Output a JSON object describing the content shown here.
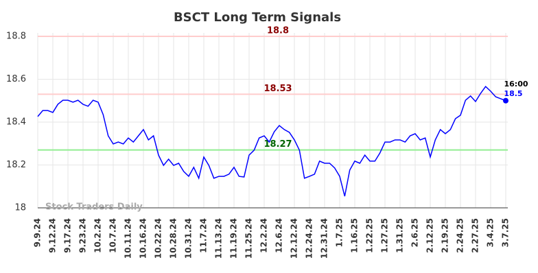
{
  "chart_data": {
    "type": "line",
    "title": "BSCT Long Term Signals",
    "categories": [
      "9.9.24",
      null,
      null,
      "9.12.24",
      null,
      null,
      "9.17.24",
      null,
      null,
      "9.23.24",
      null,
      null,
      "10.2.24",
      null,
      null,
      "10.7.24",
      null,
      null,
      "10.11.24",
      null,
      null,
      "10.16.24",
      null,
      null,
      "10.22.24",
      null,
      null,
      "10.28.24",
      null,
      null,
      "10.31.24",
      null,
      null,
      "11.7.24",
      null,
      null,
      "11.13.24",
      null,
      null,
      "11.19.24",
      null,
      null,
      "11.25.24",
      null,
      null,
      "12.2.24",
      null,
      null,
      "12.6.24",
      null,
      null,
      "12.12.24",
      null,
      null,
      "12.24.24",
      null,
      null,
      "12.31.24",
      null,
      null,
      "1.7.25",
      null,
      null,
      "1.16.25",
      null,
      null,
      "1.22.25",
      null,
      null,
      "1.27.25",
      null,
      null,
      "1.31.25",
      null,
      null,
      "2.6.25",
      null,
      null,
      "2.12.25",
      null,
      null,
      "2.19.25",
      null,
      null,
      "2.24.25",
      null,
      null,
      "2.27.25",
      null,
      null,
      "3.4.25",
      null,
      null,
      "3.7.25"
    ],
    "values": [
      18.426,
      18.454,
      18.454,
      18.445,
      18.483,
      18.502,
      18.502,
      18.493,
      18.502,
      18.483,
      18.474,
      18.502,
      18.493,
      18.435,
      18.336,
      18.298,
      18.307,
      18.298,
      18.326,
      18.307,
      18.336,
      18.365,
      18.317,
      18.336,
      18.246,
      18.198,
      18.227,
      18.198,
      18.208,
      18.17,
      18.147,
      18.189,
      18.138,
      18.237,
      18.198,
      18.138,
      18.147,
      18.147,
      18.157,
      18.189,
      18.147,
      18.144,
      18.246,
      18.269,
      18.326,
      18.336,
      18.307,
      18.355,
      18.384,
      18.365,
      18.352,
      18.317,
      18.269,
      18.138,
      18.147,
      18.157,
      18.218,
      18.208,
      18.208,
      18.186,
      18.147,
      18.054,
      18.176,
      18.218,
      18.208,
      18.246,
      18.218,
      18.218,
      18.256,
      18.307,
      18.307,
      18.317,
      18.317,
      18.307,
      18.336,
      18.346,
      18.317,
      18.326,
      18.237,
      18.317,
      18.365,
      18.346,
      18.365,
      18.416,
      18.432,
      18.502,
      18.522,
      18.496,
      18.534,
      18.566,
      18.544,
      18.518,
      18.509,
      18.5
    ],
    "color": "#0000ff",
    "ylim": [
      18,
      18.8
    ],
    "yticks": [
      18,
      18.2,
      18.4,
      18.6,
      18.8
    ],
    "grid": true,
    "hlines": [
      {
        "value": 18.8,
        "color": "#ffcccc",
        "label_color": "#8b0000"
      },
      {
        "value": 18.53,
        "color": "#ffcccc",
        "label_color": "#8b0000"
      },
      {
        "value": 18.27,
        "color": "#90ee90",
        "label_color": "#006400"
      }
    ],
    "last_time_label": "16:00",
    "watermark": "Stock Traders Daily"
  }
}
